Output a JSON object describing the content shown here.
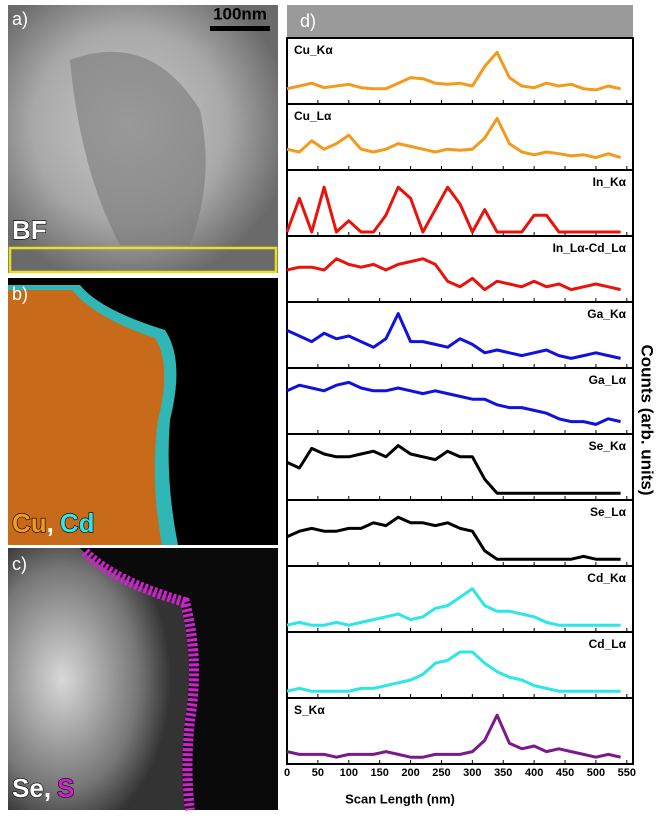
{
  "image_panels": {
    "a_label": "a)",
    "a_mode": "BF",
    "scale_bar": "100nm",
    "b_label": "b)",
    "b_elem1": "Cu",
    "b_sep": ",",
    "b_elem2": "Cd",
    "c_label": "c)",
    "c_elem1": "Se",
    "c_sep": ",",
    "c_elem2": "S"
  },
  "chart_data": {
    "type": "line",
    "panel_label": "d)",
    "x_label": "Scan Length (nm)",
    "y_label": "Counts (arb. units)",
    "x": [
      0,
      20,
      40,
      60,
      80,
      100,
      120,
      140,
      160,
      180,
      200,
      220,
      240,
      260,
      280,
      300,
      320,
      340,
      360,
      380,
      400,
      420,
      440,
      460,
      480,
      500,
      520,
      540
    ],
    "xlim": [
      0,
      560
    ],
    "xticks": [
      0,
      50,
      100,
      150,
      200,
      250,
      300,
      350,
      400,
      450,
      500,
      550
    ],
    "ylim": [
      0,
      100
    ],
    "series": [
      {
        "name": "Cu_Kα",
        "color": "#f39a1e",
        "values": [
          20,
          25,
          30,
          22,
          25,
          28,
          22,
          20,
          20,
          30,
          40,
          38,
          30,
          28,
          30,
          25,
          60,
          85,
          40,
          25,
          22,
          30,
          25,
          28,
          20,
          18,
          25,
          20
        ]
      },
      {
        "name": "Cu_Lα",
        "color": "#f39a1e",
        "values": [
          30,
          25,
          45,
          30,
          40,
          55,
          30,
          25,
          30,
          40,
          35,
          30,
          25,
          30,
          28,
          30,
          50,
          85,
          40,
          25,
          20,
          25,
          22,
          18,
          20,
          15,
          22,
          15
        ]
      },
      {
        "name": "In_Kα",
        "color": "#e8140c",
        "values": [
          0,
          60,
          0,
          80,
          0,
          20,
          0,
          0,
          30,
          80,
          60,
          0,
          40,
          80,
          50,
          0,
          40,
          0,
          0,
          0,
          30,
          30,
          0,
          0,
          0,
          0,
          0,
          0
        ]
      },
      {
        "name": "In_Lα-Cd_Lα",
        "color": "#e8140c",
        "values": [
          50,
          55,
          55,
          50,
          70,
          60,
          55,
          60,
          50,
          60,
          65,
          70,
          60,
          30,
          20,
          35,
          15,
          30,
          25,
          20,
          30,
          20,
          25,
          15,
          20,
          25,
          20,
          15
        ]
      },
      {
        "name": "Ga_Kα",
        "color": "#1010e0",
        "values": [
          60,
          50,
          40,
          55,
          45,
          50,
          40,
          30,
          45,
          90,
          40,
          40,
          35,
          30,
          45,
          35,
          20,
          25,
          20,
          15,
          20,
          25,
          15,
          10,
          15,
          20,
          15,
          10
        ]
      },
      {
        "name": "Ga_Lα",
        "color": "#1010e0",
        "values": [
          70,
          80,
          75,
          70,
          80,
          85,
          75,
          70,
          70,
          75,
          70,
          65,
          70,
          65,
          60,
          55,
          55,
          45,
          40,
          40,
          35,
          30,
          20,
          15,
          15,
          10,
          20,
          15
        ]
      },
      {
        "name": "Se_Kα",
        "color": "#000000",
        "values": [
          60,
          50,
          85,
          75,
          70,
          70,
          75,
          80,
          70,
          90,
          75,
          70,
          65,
          80,
          70,
          70,
          30,
          5,
          5,
          5,
          5,
          5,
          5,
          5,
          5,
          5,
          5,
          5
        ]
      },
      {
        "name": "Se_Lα",
        "color": "#000000",
        "values": [
          45,
          55,
          60,
          55,
          55,
          60,
          60,
          70,
          65,
          80,
          70,
          70,
          65,
          70,
          60,
          55,
          20,
          5,
          5,
          5,
          5,
          5,
          5,
          5,
          10,
          5,
          5,
          5
        ]
      },
      {
        "name": "Cd_Kα",
        "color": "#2ee6e6",
        "values": [
          5,
          10,
          5,
          5,
          10,
          5,
          10,
          15,
          20,
          25,
          15,
          20,
          35,
          40,
          55,
          70,
          40,
          30,
          30,
          25,
          20,
          10,
          5,
          5,
          5,
          5,
          5,
          5
        ]
      },
      {
        "name": "Cd_Lα",
        "color": "#2ee6e6",
        "values": [
          5,
          10,
          5,
          5,
          5,
          5,
          10,
          10,
          15,
          20,
          25,
          35,
          55,
          60,
          75,
          75,
          55,
          40,
          30,
          25,
          15,
          10,
          5,
          5,
          5,
          5,
          5,
          5
        ]
      },
      {
        "name": "S_Kα",
        "color": "#7a1a8a",
        "values": [
          15,
          10,
          10,
          10,
          5,
          10,
          10,
          10,
          15,
          10,
          5,
          5,
          10,
          10,
          10,
          15,
          35,
          80,
          30,
          20,
          25,
          15,
          20,
          15,
          10,
          5,
          10,
          5
        ]
      }
    ]
  }
}
